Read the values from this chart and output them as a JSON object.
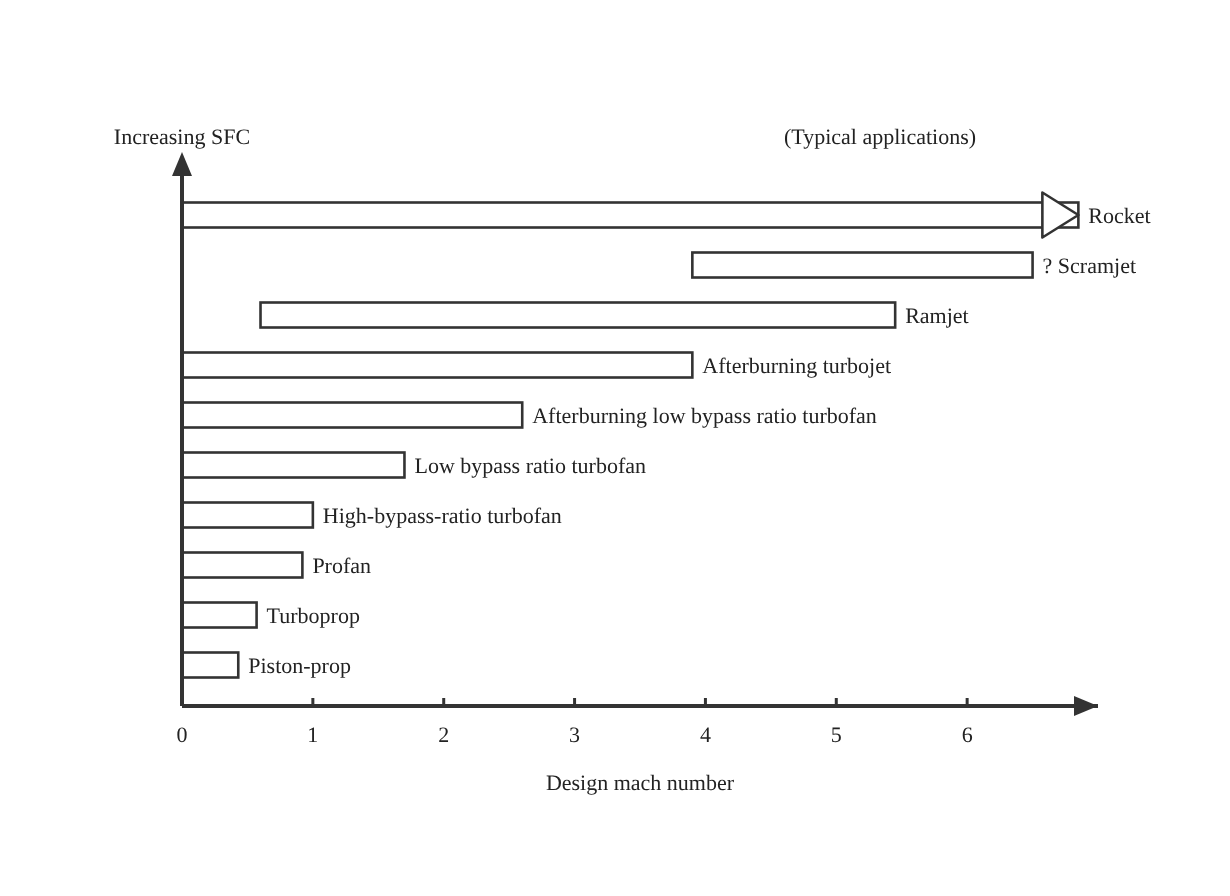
{
  "chart_data": {
    "type": "bar",
    "orientation": "horizontal",
    "xlabel": "Design mach number",
    "ylabel": "Increasing SFC",
    "annotations": [
      "(Typical applications)"
    ],
    "categories": [
      "Rocket",
      "? Scramjet",
      "Ramjet",
      "Afterburning turbojet",
      "Afterburning low bypass ratio turbofan",
      "Low bypass ratio turbofan",
      "High-bypass-ratio turbofan",
      "Profan",
      "Turboprop",
      "Piston-prop"
    ],
    "base": [
      0,
      3.9,
      0.6,
      0,
      0,
      0,
      0,
      0,
      0,
      0
    ],
    "values": [
      6.85,
      2.6,
      4.85,
      3.9,
      2.6,
      1.7,
      1.0,
      0.92,
      0.57,
      0.43
    ],
    "color": "#ffffff",
    "xlim": [
      0,
      7
    ],
    "xticks": [
      0,
      1,
      2,
      3,
      4,
      5,
      6
    ],
    "grid": false
  }
}
